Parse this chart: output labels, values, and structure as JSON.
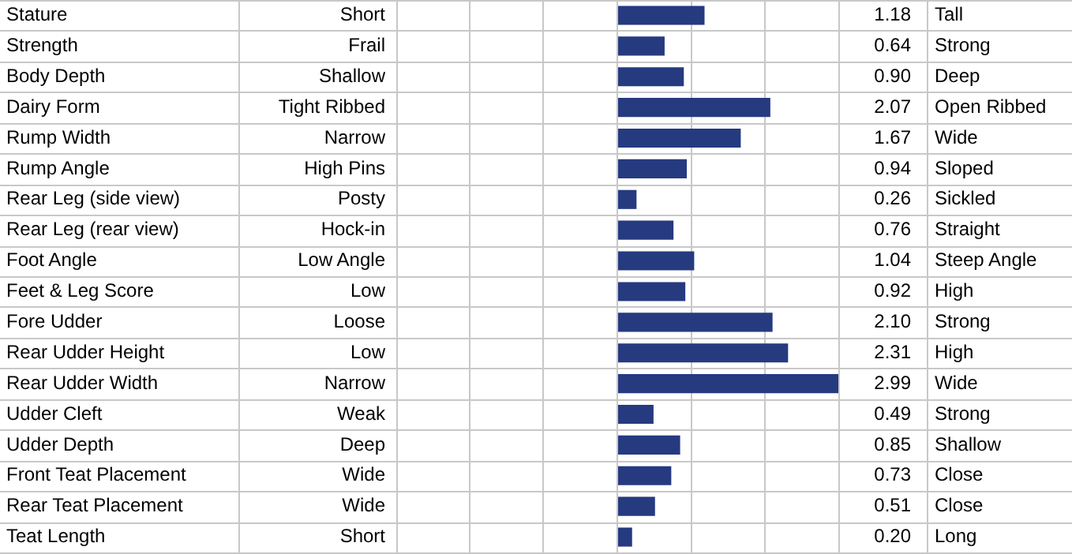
{
  "chart_data": {
    "type": "bar",
    "orientation": "horizontal",
    "grid": true,
    "categories": [
      "Stature",
      "Strength",
      "Body Depth",
      "Dairy Form",
      "Rump Width",
      "Rump Angle",
      "Rear Leg (side view)",
      "Rear Leg (rear view)",
      "Foot Angle",
      "Feet & Leg Score",
      "Fore Udder",
      "Rear Udder Height",
      "Rear Udder Width",
      "Udder Cleft",
      "Udder Depth",
      "Front Teat Placement",
      "Rear Teat Placement",
      "Teat Length"
    ],
    "values": [
      1.18,
      0.64,
      0.9,
      2.07,
      1.67,
      0.94,
      0.26,
      0.76,
      1.04,
      0.92,
      2.1,
      2.31,
      2.99,
      0.49,
      0.85,
      0.73,
      0.51,
      0.2
    ],
    "value_labels": [
      "1.18",
      "0.64",
      "0.90",
      "2.07",
      "1.67",
      "0.94",
      "0.26",
      "0.76",
      "1.04",
      "0.92",
      "2.10",
      "2.31",
      "2.99",
      "0.49",
      "0.85",
      "0.73",
      "0.51",
      "0.20"
    ],
    "color": "#263a80",
    "annotations": [
      "Short",
      "Tall",
      "Frail",
      "Strong",
      "Shallow",
      "Deep",
      "Tight Ribbed",
      "Open Ribbed",
      "Narrow",
      "Wide",
      "High Pins",
      "Sloped",
      "Posty",
      "Sickled",
      "Hock-in",
      "Straight",
      "Low Angle",
      "Steep Angle",
      "Low",
      "High",
      "Loose",
      "Strong",
      "Low",
      "High",
      "Narrow",
      "Wide",
      "Weak",
      "Strong",
      "Deep",
      "Shallow",
      "Wide",
      "Close",
      "Wide",
      "Close",
      "Short",
      "Long"
    ]
  }
}
